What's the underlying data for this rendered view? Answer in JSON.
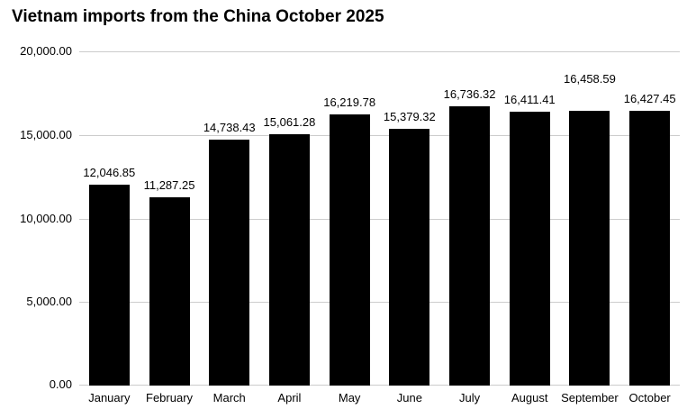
{
  "title": "Vietnam imports from the China October 2025",
  "chart_data": {
    "type": "bar",
    "title": "Vietnam imports from the China October 2025",
    "categories": [
      "January",
      "February",
      "March",
      "April",
      "May",
      "June",
      "July",
      "August",
      "September",
      "October"
    ],
    "values": [
      12046.85,
      11287.25,
      14738.43,
      15061.28,
      16219.78,
      15379.32,
      16736.32,
      16411.41,
      16458.59,
      16427.45
    ],
    "value_labels": [
      "12,046.85",
      "11,287.25",
      "14,738.43",
      "15,061.28",
      "16,219.78",
      "15,379.32",
      "16,736.32",
      "16,411.41",
      "16,458.59",
      "16,427.45"
    ],
    "xlabel": "",
    "ylabel": "",
    "ylim": [
      0,
      20000
    ],
    "yticks": [
      0,
      5000,
      10000,
      15000,
      20000
    ],
    "ytick_labels": [
      "0.00",
      "5,000.00",
      "10,000.00",
      "15,000.00",
      "20,000.00"
    ],
    "grid": "horizontal",
    "legend": "none",
    "bar_color": "#000000",
    "grid_color": "#cccccc",
    "label_raise": [
      0,
      0,
      0,
      0,
      0,
      0,
      0,
      0,
      22,
      0
    ]
  }
}
